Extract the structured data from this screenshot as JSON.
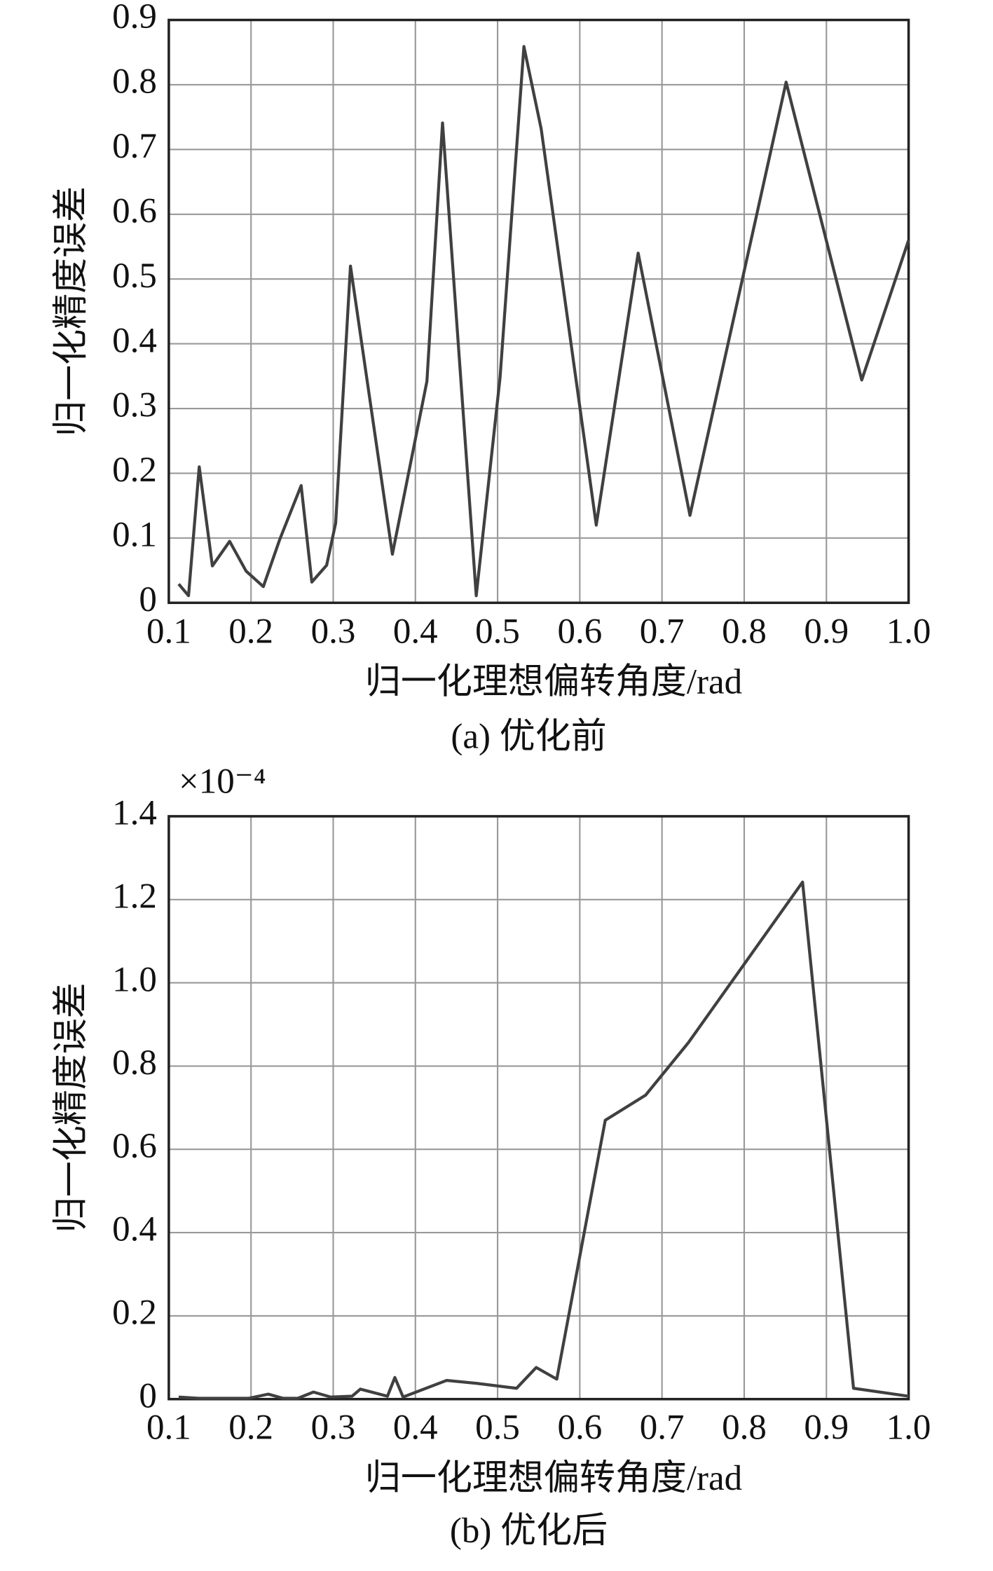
{
  "chart_data": [
    {
      "type": "line",
      "x_label": "归一化理想偏转角度/rad",
      "y_label": "归一化精度误差",
      "caption": "(a) 优化前",
      "xlim": [
        0.1,
        1
      ],
      "ylim": [
        0,
        0.9
      ],
      "grid": true,
      "xticks": [
        0.1,
        0.2,
        0.3,
        0.4,
        0.5,
        0.6,
        0.7,
        0.8,
        0.9,
        {
          "value": 1,
          "label": "1.0"
        }
      ],
      "yticks": [
        0,
        0.1,
        0.2,
        0.3,
        0.4,
        0.5,
        0.6,
        0.7,
        0.8,
        0.9
      ],
      "series": [
        {
          "color": "#404040",
          "x": [
            0.112,
            0.124,
            0.137,
            0.153,
            0.174,
            0.194,
            0.215,
            0.235,
            0.261,
            0.274,
            0.292,
            0.303,
            0.321,
            0.372,
            0.414,
            0.433,
            0.474,
            0.503,
            0.532,
            0.553,
            0.62,
            0.671,
            0.734,
            0.851,
            0.943,
            1.0
          ],
          "values": [
            0.029,
            0.011,
            0.21,
            0.057,
            0.095,
            0.049,
            0.025,
            0.098,
            0.181,
            0.032,
            0.058,
            0.123,
            0.52,
            0.075,
            0.342,
            0.741,
            0.011,
            0.348,
            0.859,
            0.732,
            0.12,
            0.54,
            0.135,
            0.804,
            0.344,
            0.56
          ]
        }
      ]
    },
    {
      "type": "line",
      "x_label": "归一化理想偏转角度/rad",
      "y_label": "归一化精度误差",
      "caption": "(b)  优化后",
      "axis_multiplier": "×10⁻⁴",
      "xlim": [
        0.1,
        1
      ],
      "ylim": [
        0,
        1.4
      ],
      "grid": true,
      "xticks": [
        0.1,
        0.2,
        0.3,
        0.4,
        0.5,
        0.6,
        0.7,
        0.8,
        0.9,
        {
          "value": 1,
          "label": "1.0"
        }
      ],
      "yticks": [
        0,
        0.2,
        0.4,
        0.6,
        0.8,
        {
          "value": 1,
          "label": "1.0"
        },
        1.2,
        1.4
      ],
      "series": [
        {
          "color": "#404040",
          "x": [
            0.112,
            0.136,
            0.197,
            0.221,
            0.239,
            0.257,
            0.276,
            0.297,
            0.323,
            0.333,
            0.366,
            0.375,
            0.385,
            0.438,
            0.474,
            0.523,
            0.547,
            0.572,
            0.631,
            0.68,
            0.732,
            0.871,
            0.933,
            1.0
          ],
          "values": [
            0.005,
            0.002,
            0.002,
            0.012,
            0.002,
            0.002,
            0.017,
            0.005,
            0.007,
            0.024,
            0.007,
            0.052,
            0.005,
            0.045,
            0.038,
            0.026,
            0.076,
            0.048,
            0.67,
            0.73,
            0.856,
            1.242,
            0.026,
            0.007
          ]
        }
      ]
    }
  ]
}
